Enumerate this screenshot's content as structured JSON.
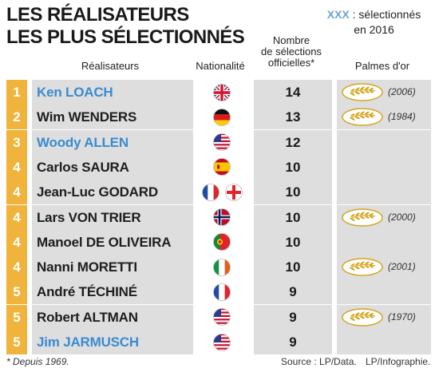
{
  "title": {
    "line1": "LES RÉALISATEURS",
    "line2": "LES PLUS SÉLECTIONNÉS"
  },
  "legend": {
    "marker": "XXX",
    "text_after": " : sélectionnés",
    "line2": "en 2016",
    "marker_color": "#6aa6d6"
  },
  "headers": {
    "directors": "Réalisateurs",
    "nationality": "Nationalité",
    "selections_1": "Nombre",
    "selections_2": "de sélections",
    "selections_3": "officielles*",
    "palmes": "Palmes d'or"
  },
  "colors": {
    "rank_bg": "#f0b43c",
    "row_bg": "#dededf",
    "selected_2016": "#3a8bd0",
    "palme_gold": "#d4a520"
  },
  "rows": [
    {
      "rank": "1",
      "name": "Ken LOACH",
      "selected_2016": true,
      "flags": [
        "uk"
      ],
      "selections": "14",
      "palme": true,
      "palme_year": "(2006)"
    },
    {
      "rank": "2",
      "name": "Wim WENDERS",
      "selected_2016": false,
      "flags": [
        "germany"
      ],
      "selections": "13",
      "palme": true,
      "palme_year": "(1984)"
    },
    {
      "rank": "3",
      "name": "Woody ALLEN",
      "selected_2016": true,
      "flags": [
        "usa"
      ],
      "selections": "12",
      "palme": false,
      "palme_year": ""
    },
    {
      "rank": "4",
      "name": "Carlos SAURA",
      "selected_2016": false,
      "flags": [
        "spain"
      ],
      "selections": "10",
      "palme": false,
      "palme_year": ""
    },
    {
      "rank": "4",
      "name": "Jean-Luc GODARD",
      "selected_2016": false,
      "flags": [
        "france",
        "switzerland"
      ],
      "selections": "10",
      "palme": false,
      "palme_year": ""
    },
    {
      "rank": "4",
      "name": "Lars VON TRIER",
      "selected_2016": false,
      "flags": [
        "norway"
      ],
      "selections": "10",
      "palme": true,
      "palme_year": "(2000)"
    },
    {
      "rank": "4",
      "name": "Manoel DE OLIVEIRA",
      "selected_2016": false,
      "flags": [
        "portugal"
      ],
      "selections": "10",
      "palme": false,
      "palme_year": ""
    },
    {
      "rank": "4",
      "name": "Nanni MORETTI",
      "selected_2016": false,
      "flags": [
        "italy"
      ],
      "selections": "10",
      "palme": true,
      "palme_year": "(2001)"
    },
    {
      "rank": "5",
      "name": "André TÉCHINÉ",
      "selected_2016": false,
      "flags": [
        "france"
      ],
      "selections": "9",
      "palme": false,
      "palme_year": ""
    },
    {
      "rank": "5",
      "name": "Robert ALTMAN",
      "selected_2016": false,
      "flags": [
        "usa"
      ],
      "selections": "9",
      "palme": true,
      "palme_year": "(1970)"
    },
    {
      "rank": "5",
      "name": "Jim JARMUSCH",
      "selected_2016": true,
      "flags": [
        "usa"
      ],
      "selections": "9",
      "palme": false,
      "palme_year": ""
    }
  ],
  "footer": {
    "footnote": "* Depuis 1969.",
    "source": "Source : LP/Data.",
    "credit": "LP/Infographie."
  }
}
